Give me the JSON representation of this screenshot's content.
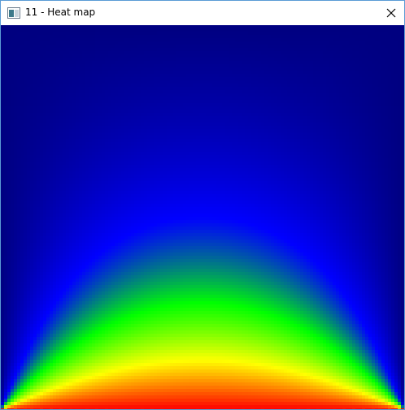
{
  "window": {
    "title": "11 - Heat map"
  }
}
